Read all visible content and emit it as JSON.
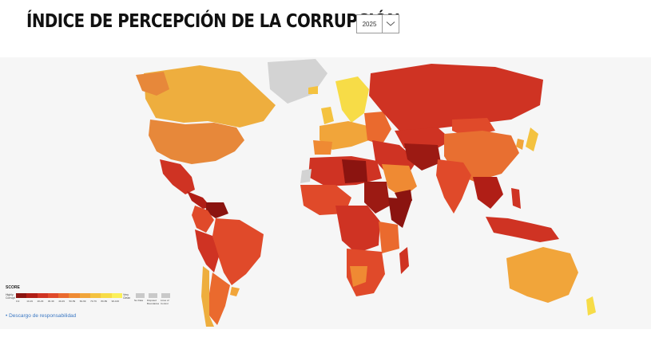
{
  "header": {
    "title": "ÍNDICE DE PERCEPCIÓN DE LA CORRUPCIÓN",
    "year_selected": "2025",
    "chevron_icon": "chevron-down-icon"
  },
  "legend": {
    "title": "SCORE",
    "low_label": "Highly Corrupt",
    "high_label": "Very Clean",
    "bins": [
      "0-9",
      "10-19",
      "20-29",
      "30-39",
      "40-49",
      "50-59",
      "60-69",
      "70-79",
      "80-89",
      "90-100"
    ],
    "bin_colors": [
      "#8b1410",
      "#b01e16",
      "#cf3323",
      "#e04a2a",
      "#ea6a2e",
      "#ef8a33",
      "#f1a53a",
      "#f4c23f",
      "#f7dc47",
      "#fbf05a"
    ],
    "extras": [
      "No Data",
      "Disputed Boundaries",
      "Lines of Control"
    ]
  },
  "disclaimer": {
    "label": "Descargo de responsabilidad"
  },
  "colors": {
    "ocean": "#f6f6f6",
    "no_data": "#d3d3d3",
    "accent_link": "#3b78c3"
  }
}
